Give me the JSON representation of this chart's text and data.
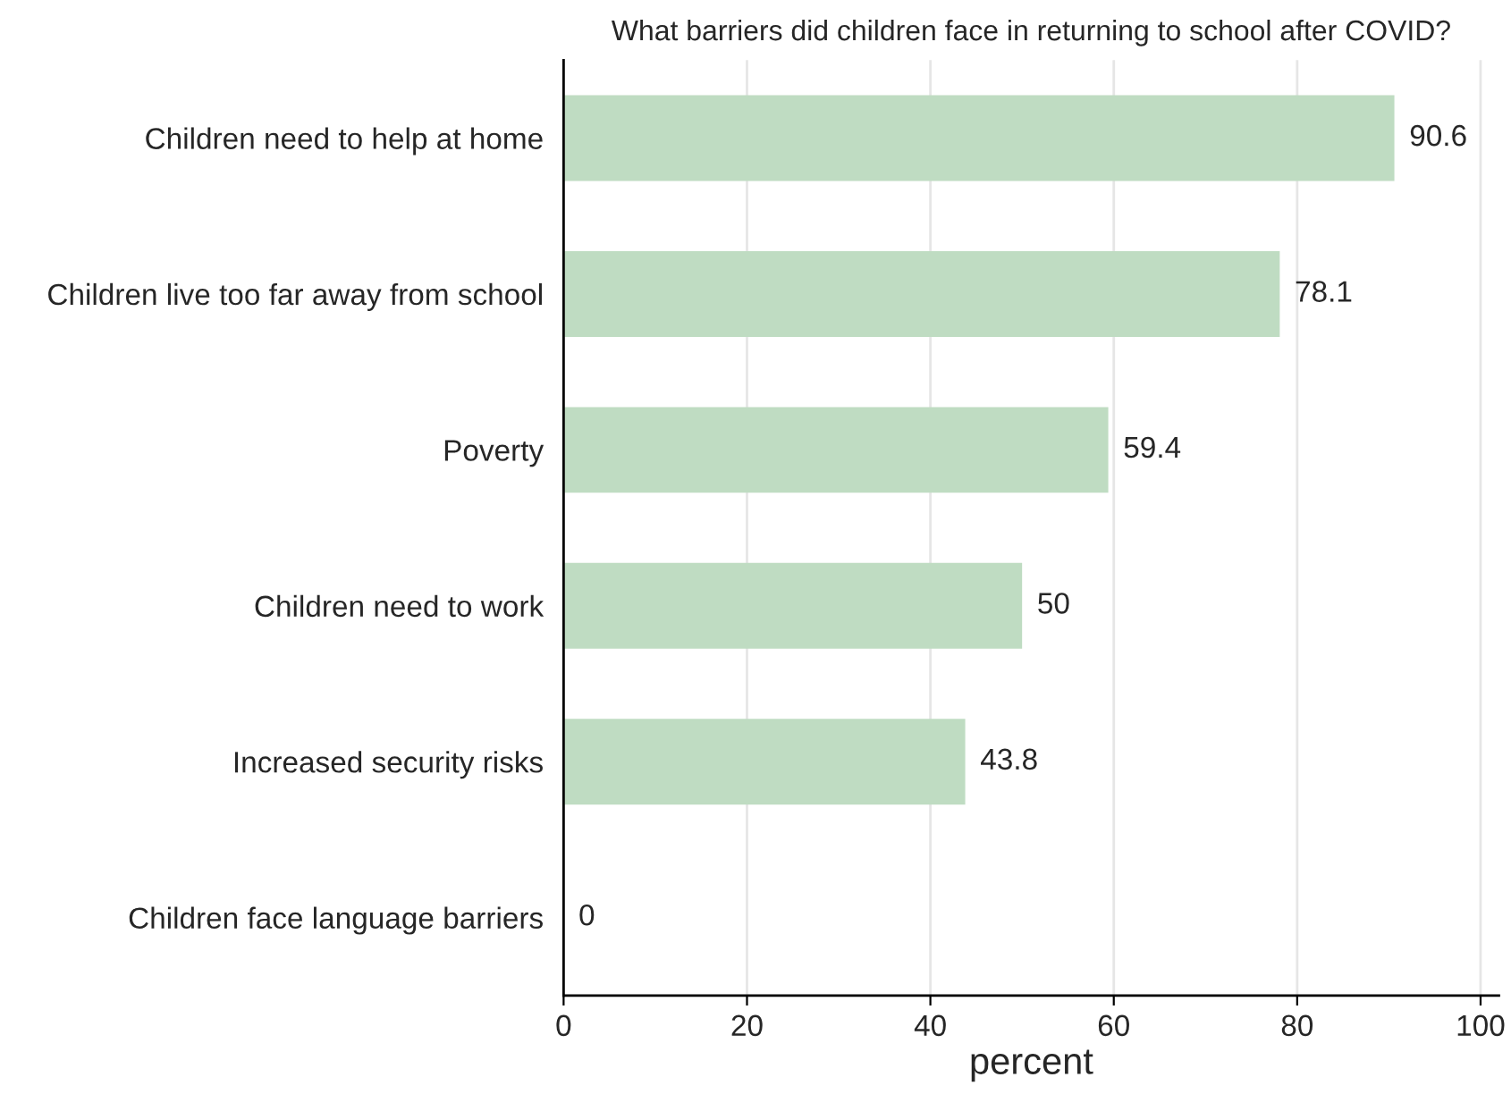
{
  "chart_data": {
    "type": "bar",
    "orientation": "horizontal",
    "title": "What barriers did children face in returning to school after COVID?",
    "xlabel": "percent",
    "categories": [
      "Children need to help at home",
      "Children live too far away from school",
      "Poverty",
      "Children need to work",
      "Increased security risks",
      "Children face language barriers"
    ],
    "values": [
      90.6,
      78.1,
      59.4,
      50,
      43.8,
      0
    ],
    "color": "#bfdcc2",
    "xlim": [
      0,
      102
    ],
    "xticks": [
      0,
      20,
      40,
      60,
      80,
      100
    ],
    "grid": "x",
    "data_labels": true
  }
}
